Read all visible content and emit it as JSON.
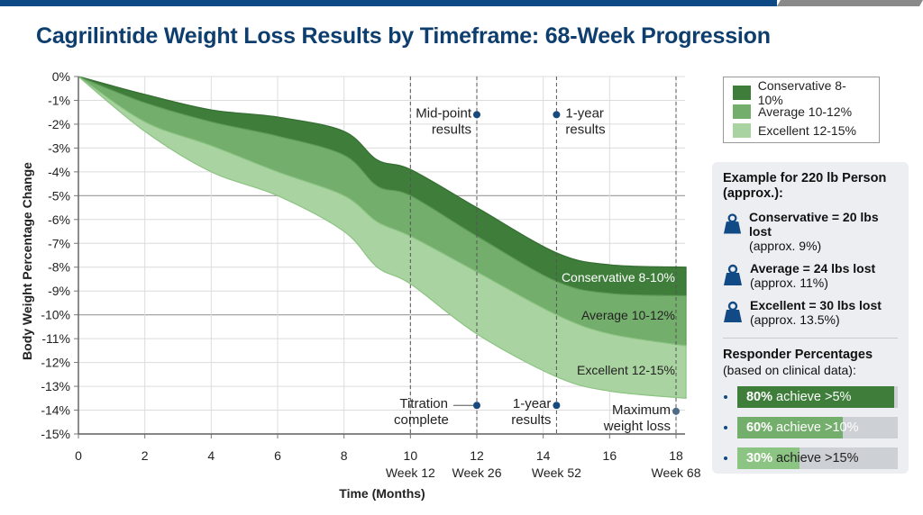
{
  "title": "Cagrilintide Weight Loss Results by Timeframe: 68-Week Progression",
  "chart_data": {
    "type": "area",
    "title": "Cagrilintide Weight Loss Results by Timeframe: 68-Week Progression",
    "xlabel": "Time (Months)",
    "ylabel": "Body Weight Percentage Change",
    "xlim": [
      0,
      18.3
    ],
    "ylim": [
      -15,
      0
    ],
    "grid": true,
    "x_ticks": [
      0,
      2,
      4,
      6,
      8,
      10,
      12,
      14,
      16,
      18
    ],
    "x_tick_labels": [
      "0",
      "2",
      "4",
      "6",
      "8",
      "10",
      "12",
      "14",
      "16",
      "18"
    ],
    "y_ticks": [
      0,
      -1,
      -2,
      -3,
      -4,
      -5,
      -6,
      -7,
      -8,
      -9,
      -10,
      -11,
      -12,
      -13,
      -14,
      -15
    ],
    "y_tick_labels": [
      "0%",
      "-1%",
      "-2%",
      "-3%",
      "-4%",
      "-5%",
      "-6%",
      "-7%",
      "-8%",
      "-9%",
      "-10%",
      "-11%",
      "-12%",
      "-13%",
      "-14%",
      "-15%"
    ],
    "week_labels": [
      {
        "x": 10,
        "label": "Week 12"
      },
      {
        "x": 12,
        "label": "Week 26"
      },
      {
        "x": 14.4,
        "label": "Week 52"
      },
      {
        "x": 18,
        "label": "Week 68"
      }
    ],
    "x": [
      0,
      2,
      4,
      6,
      8,
      9,
      10,
      12,
      14.4,
      16,
      18.3
    ],
    "boundaries": {
      "top": [
        0,
        -0.75,
        -1.4,
        -1.7,
        -2.3,
        -3.5,
        -3.9,
        -5.5,
        -7.4,
        -7.9,
        -8.0
      ],
      "conservative_avg": [
        0,
        -1.1,
        -1.9,
        -2.5,
        -3.3,
        -4.6,
        -5.0,
        -6.7,
        -8.6,
        -9.1,
        -9.2
      ],
      "avg_excellent": [
        0,
        -1.9,
        -2.9,
        -4.0,
        -5.0,
        -6.1,
        -6.7,
        -8.2,
        -10.0,
        -10.8,
        -11.3
      ],
      "bottom": [
        0,
        -2.3,
        -4.0,
        -5.0,
        -6.5,
        -8.0,
        -8.7,
        -10.8,
        -12.6,
        -13.2,
        -13.5
      ]
    },
    "series": [
      {
        "name": "Conservative 8-10%",
        "label": "Conservative 8-10%",
        "color": "#3e7d3a",
        "upper": "top",
        "lower": "conservative_avg"
      },
      {
        "name": "Average 10-12%",
        "label": "Average 10-12%",
        "color": "#74ae6c",
        "upper": "conservative_avg",
        "lower": "avg_excellent"
      },
      {
        "name": "Excellent 12-15%",
        "label": "Excellent 12-15%",
        "color": "#a9d3a0",
        "upper": "avg_excellent",
        "lower": "bottom"
      }
    ],
    "annotations": [
      {
        "text": [
          "Mid-point",
          "results"
        ],
        "x": 12,
        "y": -1.6,
        "side": "left"
      },
      {
        "text": [
          "1-year",
          "results"
        ],
        "x": 14.4,
        "y": -1.6,
        "side": "right"
      },
      {
        "text": [
          "Titration",
          "complete"
        ],
        "x": 12,
        "y": -13.8,
        "side": "left"
      },
      {
        "text": [
          "1-year",
          "results"
        ],
        "x": 14.4,
        "y": -13.8,
        "side": "left"
      },
      {
        "text": [
          "Maximum",
          "weight loss"
        ],
        "x": 18,
        "y": -14.05,
        "side": "left"
      }
    ],
    "legend": {
      "placement": "top-right",
      "items": [
        "Conservative 8-10%",
        "Average 10-12%",
        "Excellent 12-15%"
      ]
    }
  },
  "panel": {
    "example_title": "Example for 220 lb Person (approx.):",
    "examples": [
      {
        "main": "Conservative = 20 lbs lost",
        "sub": "(approx. 9%)"
      },
      {
        "main": "Average = 24 lbs lost",
        "sub": "(approx. 11%)"
      },
      {
        "main": "Excellent = 30 lbs lost",
        "sub": "(approx. 13.5%)"
      }
    ],
    "responder_title": "Responder Percentages",
    "responder_sub": "(based on clinical data):",
    "responders": [
      {
        "pct": "80%",
        "text": " achieve >5%",
        "value": 80,
        "color": "#3e7d3a"
      },
      {
        "pct": "60%",
        "text": " achieve >10%",
        "value": 60,
        "color": "#74ae6c"
      },
      {
        "pct": "30%",
        "text": " achieve >15%",
        "value": 30,
        "color": "#8cc483"
      }
    ]
  },
  "colors": {
    "title": "#0d3e6e",
    "accent": "#0d4a85",
    "marker": "#174a7c"
  }
}
